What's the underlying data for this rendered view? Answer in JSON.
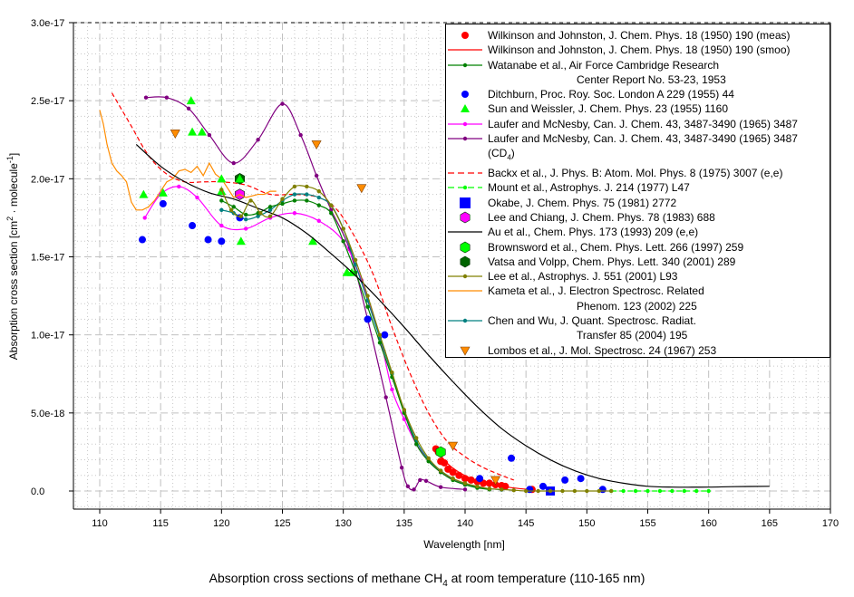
{
  "chart_data": {
    "type": "line",
    "title": "",
    "caption": "Absorption cross sections of methane CH4 at room temperature (110-165 nm)",
    "caption_parts": {
      "before": "Absorption cross sections of methane CH",
      "sub": "4",
      "after": " at room temperature (110-165 nm)"
    },
    "xlabel": "Wavelength [nm]",
    "ylabel": "Absorption cross section [cm2 · molecule-1]",
    "ylabel_parts": {
      "a": "Absorption cross section [cm",
      "sup1": "2",
      "b": " · molecule",
      "sup2": "-1",
      "c": "]"
    },
    "xlim": [
      110,
      170
    ],
    "ylim": [
      0,
      3e-17
    ],
    "x_ticks": [
      "110",
      "115",
      "120",
      "125",
      "130",
      "135",
      "140",
      "145",
      "150",
      "155",
      "160",
      "165",
      "170"
    ],
    "y_ticks": [
      "0.0",
      "5.0e-18",
      "1.0e-17",
      "1.5e-17",
      "2.0e-17",
      "2.5e-17",
      "3.0e-17"
    ],
    "grid": true,
    "legend_position": "top-right",
    "series": [
      {
        "name": "Wilkinson and Johnston, J. Chem. Phys. 18 (1950) 190 (meas)",
        "style": "marker",
        "marker": "circle",
        "color": "#ff0000",
        "x": [
          137.6,
          137.8,
          138.0,
          138.3,
          138.6,
          139.0,
          139.5,
          140.0,
          140.5,
          141.0,
          141.5,
          142.0,
          142.5,
          143.0,
          143.3,
          145.5
        ],
        "y": [
          2.7e-18,
          2.5e-18,
          1.9e-18,
          1.8e-18,
          1.4e-18,
          1.2e-18,
          1e-18,
          8e-19,
          7e-19,
          6e-19,
          5e-19,
          5e-19,
          4e-19,
          3.5e-19,
          3e-19,
          1e-19
        ]
      },
      {
        "name": "Wilkinson and Johnston, J. Chem. Phys. 18 (1950) 190 (smoo)",
        "style": "line",
        "color": "#ff0000",
        "x": [
          137.5,
          138.5,
          139.5,
          140.5,
          141.5,
          142.5,
          143.5,
          144.5,
          145.5
        ],
        "y": [
          2.8e-18,
          1.8e-18,
          1.2e-18,
          8e-19,
          5.5e-19,
          3.8e-19,
          2.5e-19,
          1.5e-19,
          1e-19
        ]
      },
      {
        "name": "Watanabe et al., Air Force Cambridge Research\nCenter Report No. 53-23, 1953",
        "style": "line-marker",
        "marker": "dot",
        "color": "#008000",
        "x": [
          120.0,
          121.0,
          122.0,
          123.0,
          124.0,
          125.0,
          126.0,
          127.0,
          128.0,
          129.0,
          130.0,
          131.0,
          132.0,
          133.0,
          134.0,
          135.0,
          136.0,
          137.0,
          138.0,
          139.0,
          140.0,
          141.0,
          142.0
        ],
        "y": [
          1.86e-17,
          1.82e-17,
          1.77e-17,
          1.78e-17,
          1.82e-17,
          1.84e-17,
          1.86e-17,
          1.86e-17,
          1.83e-17,
          1.78e-17,
          1.6e-17,
          1.4e-17,
          1.18e-17,
          9.5e-18,
          7.3e-18,
          5e-18,
          3e-18,
          1.9e-18,
          1.2e-18,
          7e-19,
          4e-19,
          2e-19,
          1e-19
        ]
      },
      {
        "name": "Ditchburn, Proc. Roy. Soc. London A 229 (1955) 44",
        "style": "marker",
        "marker": "circle",
        "color": "#0000ff",
        "x": [
          113.5,
          115.2,
          117.6,
          118.9,
          120.0,
          121.5,
          132.0,
          133.4,
          141.2,
          143.8,
          145.3,
          146.4,
          148.2,
          149.5,
          151.3
        ],
        "y": [
          1.61e-17,
          1.84e-17,
          1.7e-17,
          1.61e-17,
          1.6e-17,
          1.75e-17,
          1.1e-17,
          1e-17,
          8e-19,
          2.1e-18,
          1e-19,
          3e-19,
          7e-19,
          8e-19,
          1e-19
        ]
      },
      {
        "name": "Sun and Weissler, J. Chem. Phys. 23 (1955) 1160",
        "style": "marker",
        "marker": "triangle",
        "color": "#00ff00",
        "x": [
          113.6,
          115.2,
          117.5,
          117.6,
          118.4,
          120.0,
          120.0,
          121.5,
          121.6,
          127.5,
          130.3,
          130.7
        ],
        "y": [
          1.9e-17,
          1.91e-17,
          2.5e-17,
          2.3e-17,
          2.3e-17,
          2e-17,
          1.92e-17,
          2e-17,
          1.6e-17,
          1.6e-17,
          1.4e-17,
          1.4e-17
        ]
      },
      {
        "name": "Laufer and McNesby, Can. J. Chem. 43, 3487-3490 (1965) 3487",
        "style": "line-marker",
        "marker": "dot",
        "color": "#ff00ff",
        "x": [
          113.7,
          115.0,
          116.5,
          118.0,
          120.0,
          122.0,
          124.0,
          126.0,
          128.0,
          130.0,
          131.5,
          133.0,
          134.0,
          135.0,
          136.0,
          137.0,
          138.0,
          140.0
        ],
        "y": [
          1.75e-17,
          1.9e-17,
          1.95e-17,
          1.88e-17,
          1.7e-17,
          1.68e-17,
          1.75e-17,
          1.78e-17,
          1.73e-17,
          1.6e-17,
          1.35e-17,
          9.8e-18,
          6.5e-18,
          4.6e-18,
          3e-18,
          2e-18,
          1.2e-18,
          4e-19
        ]
      },
      {
        "name": "Laufer and McNesby, Can. J. Chem. 43, 3487-3490 (1965) 3487\n(CD4)",
        "style": "line-marker",
        "marker": "dot",
        "color": "#800080",
        "x": [
          113.8,
          115.5,
          117.3,
          119.0,
          121.0,
          123.0,
          125.0,
          126.5,
          127.8,
          129.0,
          130.5,
          132.0,
          133.5,
          134.8,
          135.3,
          135.8,
          136.3,
          136.8,
          138.0,
          140.0
        ],
        "y": [
          2.52e-17,
          2.52e-17,
          2.45e-17,
          2.28e-17,
          2.1e-17,
          2.25e-17,
          2.48e-17,
          2.28e-17,
          2.02e-17,
          1.8e-17,
          1.55e-17,
          1.1e-17,
          6e-18,
          1.5e-18,
          3e-19,
          1e-19,
          7e-19,
          6.5e-19,
          2.5e-19,
          1e-19
        ]
      },
      {
        "name": "Backx et al., J. Phys. B: Atom. Mol. Phys. 8 (1975) 3007 (e,e)",
        "style": "dashed",
        "color": "#ff0000",
        "x": [
          111.0,
          112.5,
          114.0,
          115.5,
          117.0,
          118.5,
          120.0,
          122.0,
          124.0,
          126.0,
          128.0,
          129.5,
          131.0,
          132.5,
          134.0,
          135.5,
          137.0,
          138.5,
          140.0,
          141.5,
          143.0,
          144.0
        ],
        "y": [
          2.55e-17,
          2.35e-17,
          2.15e-17,
          2.03e-17,
          1.98e-17,
          1.98e-17,
          1.98e-17,
          1.96e-17,
          1.9e-17,
          1.9e-17,
          1.88e-17,
          1.8e-17,
          1.62e-17,
          1.38e-17,
          1.05e-17,
          7.5e-18,
          5e-18,
          3.2e-18,
          2.2e-18,
          1.5e-18,
          1e-18,
          7e-19
        ]
      },
      {
        "name": "Mount et al., Astrophys. J. 214 (1977) L47",
        "style": "dashed-marker",
        "marker": "dot",
        "color": "#00ff00",
        "x": [
          152.0,
          153.0,
          154.0,
          155.0,
          156.0,
          157.0,
          158.0,
          159.0,
          160.0
        ],
        "y": [
          0,
          0,
          0,
          0,
          0,
          0,
          0,
          0,
          0
        ]
      },
      {
        "name": "Okabe, J. Chem. Phys. 75 (1981) 2772",
        "style": "marker",
        "marker": "square",
        "color": "#0000ff",
        "x": [
          147.0
        ],
        "y": [
          0
        ]
      },
      {
        "name": "Lee and Chiang, J. Chem. Phys. 78 (1983) 688",
        "style": "marker",
        "marker": "hexagon",
        "color": "#ff00ff",
        "x": [
          121.5
        ],
        "y": [
          1.9e-17
        ]
      },
      {
        "name": "Au et al., Chem. Phys. 173 (1993) 209 (e,e)",
        "style": "line",
        "color": "#000000",
        "x": [
          113.0,
          115.0,
          117.0,
          119.0,
          121.0,
          123.0,
          125.0,
          127.0,
          129.0,
          131.0,
          133.0,
          135.0,
          137.0,
          139.0,
          141.0,
          143.0,
          145.0,
          147.0,
          149.0,
          151.0,
          153.0,
          155.0,
          157.0,
          160.0,
          162.0,
          165.0
        ],
        "y": [
          2.22e-17,
          2.08e-17,
          1.98e-17,
          1.91e-17,
          1.87e-17,
          1.81e-17,
          1.75e-17,
          1.65e-17,
          1.52e-17,
          1.38e-17,
          1.22e-17,
          1.05e-17,
          8.7e-18,
          7e-18,
          5.4e-18,
          4e-18,
          2.9e-18,
          2e-18,
          1.3e-18,
          8e-19,
          5e-19,
          3e-19,
          2.5e-19,
          2.5e-19,
          2.8e-19,
          3e-19
        ]
      },
      {
        "name": "Brownsword et al., Chem. Phys. Lett. 266 (1997) 259",
        "style": "marker",
        "marker": "hexagon",
        "color": "#00ff00",
        "x": [
          138.0
        ],
        "y": [
          2.5e-18
        ]
      },
      {
        "name": "Vatsa and Volpp, Chem. Phys. Lett. 340 (2001) 289",
        "style": "marker",
        "marker": "hexagon",
        "color": "#006400",
        "x": [
          121.5
        ],
        "y": [
          2e-17
        ]
      },
      {
        "name": "Lee et al., Astrophys. J. 551 (2001) L93",
        "style": "line-marker",
        "marker": "dot",
        "color": "#808000",
        "x": [
          120.0,
          120.8,
          121.6,
          122.4,
          123.2,
          124.0,
          125.0,
          126.0,
          127.0,
          128.0,
          129.0,
          130.0,
          131.0,
          132.0,
          133.0,
          134.0,
          135.0,
          136.0,
          137.0,
          138.0,
          139.0,
          140.0,
          141.0,
          142.0,
          143.0,
          144.0,
          145.0,
          146.0,
          147.0,
          148.0,
          149.0,
          150.0,
          151.0,
          152.0
        ],
        "y": [
          1.93e-17,
          1.8e-17,
          1.76e-17,
          1.86e-17,
          1.78e-17,
          1.76e-17,
          1.87e-17,
          1.95e-17,
          1.95e-17,
          1.92e-17,
          1.83e-17,
          1.68e-17,
          1.48e-17,
          1.25e-17,
          1e-17,
          7.6e-18,
          5.2e-18,
          3.4e-18,
          2.1e-18,
          1.3e-18,
          8e-19,
          5e-19,
          3e-19,
          1.5e-19,
          1e-19,
          5e-20,
          0,
          0,
          0,
          0,
          0,
          0,
          0,
          0
        ]
      },
      {
        "name": "Kameta et al., J. Electron Spectrosc. Related\nPhenom. 123 (2002) 225",
        "style": "line",
        "color": "#ff8c00",
        "x": [
          110.0,
          110.3,
          110.6,
          111.0,
          111.4,
          111.8,
          112.2,
          112.6,
          113.0,
          113.5,
          114.0,
          114.5,
          115.0,
          115.5,
          116.0,
          116.5,
          117.0,
          117.5,
          118.0,
          118.5,
          119.0,
          119.5,
          120.0,
          120.5,
          121.0,
          121.5,
          122.0,
          122.5,
          123.0,
          123.5,
          124.0,
          124.5
        ],
        "y": [
          2.44e-17,
          2.35e-17,
          2.22e-17,
          2.1e-17,
          2.05e-17,
          2.02e-17,
          1.98e-17,
          1.85e-17,
          1.8e-17,
          1.8e-17,
          1.82e-17,
          1.86e-17,
          1.92e-17,
          1.98e-17,
          2e-17,
          2.05e-17,
          2.06e-17,
          2.04e-17,
          2.08e-17,
          2.02e-17,
          2.1e-17,
          2.03e-17,
          2e-17,
          1.94e-17,
          1.88e-17,
          1.9e-17,
          1.88e-17,
          1.89e-17,
          1.9e-17,
          1.9e-17,
          1.92e-17,
          1.92e-17
        ]
      },
      {
        "name": "Chen and Wu, J. Quant. Spectrosc. Radiat.\nTransfer 85 (2004) 195",
        "style": "line-marker",
        "marker": "dot",
        "color": "#008080",
        "x": [
          120.0,
          121.0,
          122.0,
          123.0,
          124.0,
          125.0,
          126.0,
          127.0,
          128.0,
          129.0,
          130.0,
          131.0,
          132.0,
          133.0,
          134.0,
          135.0,
          136.0,
          137.0,
          138.0,
          139.0,
          140.0,
          141.0,
          142.0,
          143.0
        ],
        "y": [
          1.8e-17,
          1.78e-17,
          1.74e-17,
          1.76e-17,
          1.8e-17,
          1.86e-17,
          1.9e-17,
          1.9e-17,
          1.88e-17,
          1.83e-17,
          1.68e-17,
          1.45e-17,
          1.22e-17,
          9.8e-18,
          7.5e-18,
          5.1e-18,
          3.2e-18,
          2e-18,
          1.3e-18,
          8e-19,
          4.5e-19,
          2.5e-19,
          1.5e-19,
          8e-20
        ]
      },
      {
        "name": "Lombos et al., J. Mol. Spectrosc. 24 (1967) 253",
        "style": "marker",
        "marker": "triangle-down",
        "color": "#ff8c00",
        "x": [
          116.2,
          127.8,
          131.5,
          139.0,
          142.5
        ],
        "y": [
          2.29e-17,
          2.22e-17,
          1.94e-17,
          2.9e-18,
          7e-19
        ]
      }
    ]
  }
}
